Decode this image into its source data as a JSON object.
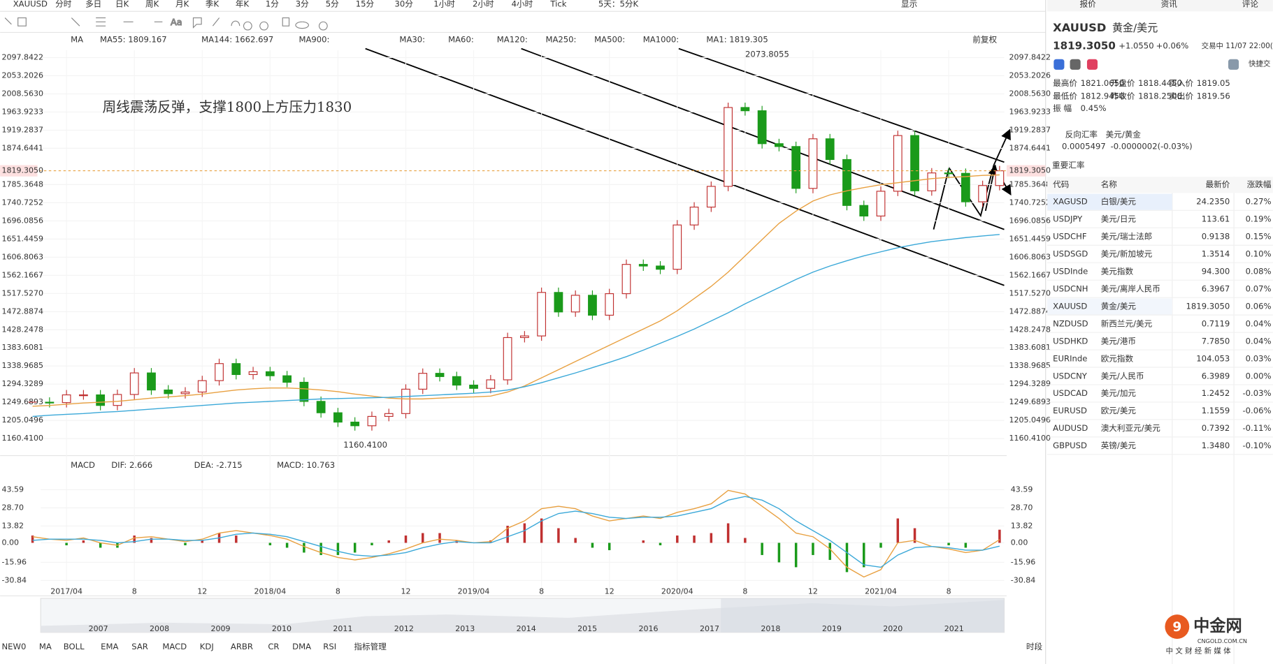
{
  "toolbar": {
    "symbol": "XAUUSD",
    "periods": [
      "分时",
      "多日",
      "日K",
      "周K",
      "月K",
      "季K",
      "年K",
      "1分",
      "3分",
      "5分",
      "15分",
      "30分",
      "1小时",
      "2小时",
      "4小时",
      "Tick",
      "5天：5分K"
    ],
    "active": "周K",
    "display": "显示"
  },
  "chart": {
    "type": "candlestick",
    "ma_legend": [
      {
        "text": "MA",
        "color": "#333333"
      },
      {
        "text": "MA55: 1809.167",
        "color": "#e8a040"
      },
      {
        "text": "MA144: 1662.697",
        "color": "#3aa8d8"
      },
      {
        "text": "MA900:",
        "color": "#d070d0"
      },
      {
        "text": "MA30:",
        "color": "#a8c8f0"
      },
      {
        "text": "MA60:",
        "color": "#c8c8e8"
      },
      {
        "text": "MA120:",
        "color": "#f0b8b8"
      },
      {
        "text": "MA250:",
        "color": "#a8e0f0"
      },
      {
        "text": "MA500:",
        "color": "#f0d8a0"
      },
      {
        "text": "MA1000:",
        "color": "#d8b8d8"
      },
      {
        "text": "MA1: 1819.305",
        "color": "#555555"
      }
    ],
    "adjust": "前复权",
    "ylim": [
      1118.5,
      2115.8
    ],
    "yticks": [
      2097.8422,
      2053.2026,
      {
        "value": 2008.563,
        "label": "2008.5630"
      },
      1963.9233,
      1919.2837,
      1874.6441,
      1785.3648,
      1740.7252,
      1696.0856,
      1651.4459,
      1606.8063,
      1562.1667,
      {
        "value": 1517.527,
        "label": "1517.5270"
      },
      1472.8874,
      1428.2478,
      1383.6081,
      1338.9685,
      1294.3289,
      1249.6893,
      1205.0496,
      {
        "value": 1160.41,
        "label": "1160.4100"
      }
    ],
    "current_price": {
      "value": 1819.305,
      "label": "1819.3050"
    },
    "x_labels": [
      "2017/04",
      "8",
      "12",
      "2018/04",
      "8",
      "12",
      "2019/04",
      "8",
      "12",
      "2020/04",
      "8",
      "12",
      "2021/04",
      "8"
    ],
    "closes": [
      1250,
      1249,
      1268,
      1268,
      1242,
      1269,
      1322,
      1280,
      1271,
      1275,
      1303,
      1345,
      1318,
      1325,
      1315,
      1299,
      1252,
      1224,
      1201,
      1192,
      1215,
      1222,
      1282,
      1321,
      1313,
      1292,
      1284,
      1305,
      1409,
      1413,
      1520,
      1472,
      1513,
      1464,
      1517,
      1589,
      1585,
      1577,
      1686,
      1730,
      1781,
      1975,
      1967,
      1886,
      1879,
      1776,
      1898,
      1847,
      1734,
      1708,
      1769,
      1906,
      1770,
      1814,
      1813,
      1743,
      1783,
      1819.305
    ],
    "ma55": [
      1240,
      1242,
      1245,
      1248,
      1250,
      1252,
      1256,
      1260,
      1263,
      1266,
      1270,
      1275,
      1280,
      1283,
      1285,
      1285,
      1283,
      1280,
      1276,
      1270,
      1265,
      1260,
      1258,
      1258,
      1260,
      1262,
      1263,
      1265,
      1275,
      1290,
      1310,
      1330,
      1350,
      1370,
      1390,
      1410,
      1430,
      1450,
      1475,
      1505,
      1535,
      1570,
      1610,
      1650,
      1690,
      1720,
      1745,
      1760,
      1770,
      1778,
      1785,
      1790,
      1795,
      1800,
      1803,
      1805,
      1808,
      1809.167
    ],
    "ma144": [
      1215,
      1218,
      1220,
      1222,
      1225,
      1227,
      1230,
      1233,
      1236,
      1239,
      1242,
      1245,
      1248,
      1250,
      1252,
      1254,
      1256,
      1258,
      1259,
      1260,
      1261,
      1262,
      1264,
      1266,
      1268,
      1270,
      1272,
      1275,
      1280,
      1288,
      1298,
      1310,
      1322,
      1335,
      1348,
      1362,
      1378,
      1395,
      1412,
      1430,
      1450,
      1470,
      1492,
      1512,
      1532,
      1552,
      1570,
      1585,
      1598,
      1610,
      1620,
      1630,
      1638,
      1645,
      1650,
      1655,
      1659,
      1662.697
    ],
    "ma_colors": [
      "#e8a040",
      "#3aa8d8"
    ],
    "peak": 2073.8055,
    "low": {
      "value": 1160.41,
      "label": "1160.4100"
    },
    "annotation": "周线震荡反弹，支撑1800上方压力1830"
  },
  "macd": {
    "legend": [
      {
        "text": "MACD",
        "color": "#333333"
      },
      {
        "text": "DIF: 2.666",
        "color": "#e8a040"
      },
      {
        "text": "DEA: -2.715",
        "color": "#3aa8d8"
      },
      {
        "text": "MACD: 10.763",
        "color": "#d070d0"
      }
    ],
    "ylim": [
      -43.5,
      56.2
    ],
    "yticks": [
      43.59,
      {
        "value": 28.7,
        "label": "28.70"
      },
      13.82,
      {
        "value": 0,
        "label": "0.00"
      },
      -15.96,
      -30.84
    ],
    "dif": [
      5,
      3,
      2,
      4,
      0,
      -2,
      4,
      5,
      3,
      1,
      3,
      8,
      10,
      8,
      6,
      3,
      -3,
      -8,
      -12,
      -14,
      -12,
      -9,
      -5,
      0,
      3,
      2,
      0,
      1,
      12,
      18,
      28,
      30,
      28,
      22,
      18,
      20,
      22,
      20,
      25,
      28,
      32,
      43,
      40,
      30,
      20,
      8,
      5,
      -5,
      -20,
      -28,
      -22,
      0,
      2,
      -3,
      -5,
      -8,
      -6,
      2.666
    ],
    "dea": [
      2,
      3,
      3,
      3,
      2,
      0,
      1,
      3,
      3,
      2,
      2,
      4,
      7,
      8,
      7,
      5,
      1,
      -3,
      -7,
      -10,
      -11,
      -10,
      -8,
      -4,
      -1,
      1,
      0,
      0,
      5,
      10,
      18,
      24,
      26,
      24,
      21,
      20,
      21,
      21,
      22,
      25,
      28,
      35,
      38,
      35,
      28,
      18,
      10,
      2,
      -8,
      -18,
      -20,
      -10,
      -4,
      -3,
      -4,
      -6,
      -6,
      -2.715
    ],
    "hist": [
      6,
      0,
      -2,
      2,
      -4,
      -4,
      6,
      4,
      0,
      -2,
      2,
      8,
      6,
      0,
      -2,
      -4,
      -8,
      -10,
      -10,
      -8,
      -2,
      2,
      6,
      8,
      8,
      2,
      0,
      2,
      14,
      16,
      20,
      12,
      4,
      -4,
      -6,
      0,
      2,
      -2,
      6,
      6,
      8,
      16,
      4,
      -10,
      -16,
      -20,
      -10,
      -14,
      -24,
      -20,
      -4,
      20,
      12,
      0,
      -2,
      -4,
      0,
      10.763
    ],
    "colors": [
      "#e8a040",
      "#3aa8d8"
    ]
  },
  "navigator": {
    "years": [
      "2007",
      "2008",
      "2009",
      "2010",
      "2011",
      "2012",
      "2013",
      "2014",
      "2015",
      "2016",
      "2017",
      "2018",
      "2019",
      "2020",
      "2021"
    ]
  },
  "indicator_tabs": [
    "NEW0",
    "MA",
    "BOLL",
    "EMA",
    "SAR",
    "MACD",
    "KDJ",
    "ARBR",
    "CR",
    "DMA",
    "RSI",
    "指标管理"
  ],
  "session": "时段",
  "side": {
    "tabs": [
      "报价",
      "资讯",
      "评论"
    ],
    "symbol": "XAUUSD",
    "name": "黄金/美元",
    "price": "1819.3050",
    "change": "+1.0550",
    "pct": "+0.06%",
    "status": "交易中 11/07 22:00(",
    "quick": "快捷交",
    "stats": [
      [
        "最高价",
        "1821.0650"
      ],
      [
        "开盘价",
        "1818.4450"
      ],
      [
        "买入价",
        "1819.05"
      ],
      [
        "最低价",
        "1812.9450"
      ],
      [
        "昨收价",
        "1818.2500"
      ],
      [
        "卖出价",
        "1819.56"
      ],
      [
        "振 幅",
        "0.45%"
      ]
    ],
    "reverse": {
      "label": "反向汇率",
      "pair": "美元/黄金",
      "value": "0.0005497",
      "change": "-0.0000002(-0.03%)"
    },
    "section": "重要汇率",
    "columns": [
      "代码",
      "名称",
      "最新价",
      "涨跌幅"
    ],
    "rows": [
      [
        "XAGUSD",
        "白银/美元",
        "24.2350",
        "0.27%"
      ],
      [
        "USDJPY",
        "美元/日元",
        "113.61",
        "0.19%"
      ],
      [
        "USDCHF",
        "美元/瑞士法郎",
        "0.9138",
        "0.15%"
      ],
      [
        "USDSGD",
        "美元/新加坡元",
        "1.3514",
        "0.10%"
      ],
      [
        "USDInde",
        "美元指数",
        "94.300",
        "0.08%"
      ],
      [
        "USDCNH",
        "美元/离岸人民币",
        "6.3967",
        "0.07%"
      ],
      [
        "XAUUSD",
        "黄金/美元",
        "1819.3050",
        "0.06%"
      ],
      [
        "NZDUSD",
        "新西兰元/美元",
        "0.7119",
        "0.04%"
      ],
      [
        "USDHKD",
        "美元/港币",
        "7.7850",
        "0.04%"
      ],
      [
        "EURInde",
        "欧元指数",
        "104.053",
        "0.03%"
      ],
      [
        "USDCNY",
        "美元/人民币",
        "6.3989",
        "0.00%"
      ],
      [
        "USDCAD",
        "美元/加元",
        "1.2452",
        "-0.03%"
      ],
      [
        "EURUSD",
        "欧元/美元",
        "1.1559",
        "-0.06%"
      ],
      [
        "AUDUSD",
        "澳大利亚元/美元",
        "0.7392",
        "-0.11%"
      ],
      [
        "GBPUSD",
        "英镑/美元",
        "1.3480",
        "-0.10%"
      ]
    ]
  },
  "logo": {
    "name": "中金网",
    "url": "CNGOLD.COM.CN",
    "slogan": "中 文 财 经 新 媒 体"
  }
}
